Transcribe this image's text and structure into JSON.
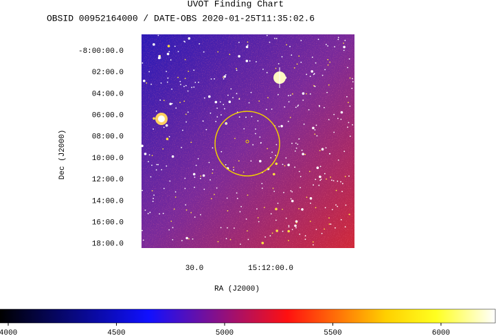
{
  "title": "UVOT Finding Chart",
  "subtitle": "OBSID 00952164000 / DATE-OBS 2020-01-25T11:35:02.6",
  "x_axis": {
    "label": "RA (J2000)",
    "tick_labels": [
      "30.0",
      "15:12:00.0"
    ]
  },
  "y_axis": {
    "label": "Dec (J2000)",
    "tick_labels": [
      "-8:00:00.0",
      "02:00.0",
      "04:00.0",
      "06:00.0",
      "08:00.0",
      "10:00.0",
      "12:00.0",
      "14:00.0",
      "16:00.0",
      "18:00.0"
    ]
  },
  "colorbar": {
    "lim": [
      3962,
      6251
    ],
    "ticks": [
      4000,
      4500,
      5000,
      5500,
      6000
    ]
  }
}
